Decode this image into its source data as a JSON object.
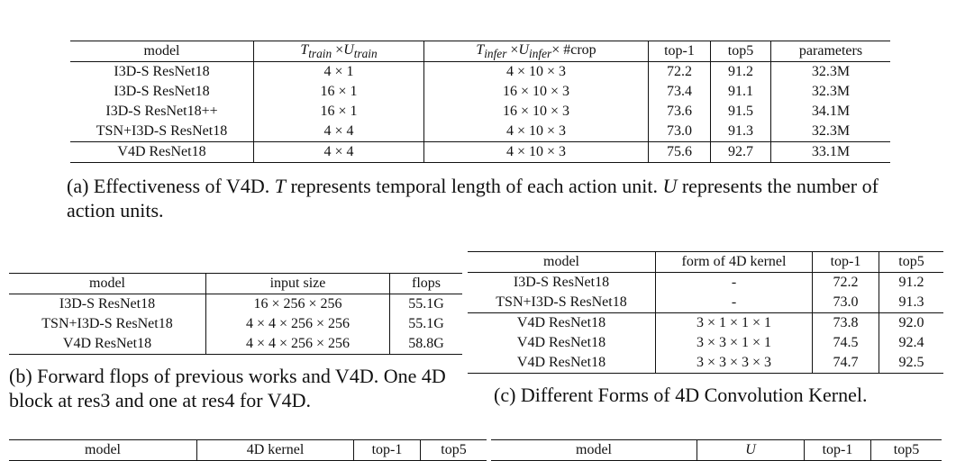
{
  "table_a": {
    "headers": [
      "model",
      "T_train ×U_train",
      "T_infer ×U_infer× #crop",
      "top-1",
      "top5",
      "parameters"
    ],
    "rows": [
      [
        "I3D-S ResNet18",
        "4 × 1",
        "4 × 10 × 3",
        "72.2",
        "91.2",
        "32.3M"
      ],
      [
        "I3D-S ResNet18",
        "16 × 1",
        "16 × 10 × 3",
        "73.4",
        "91.1",
        "32.3M"
      ],
      [
        "I3D-S ResNet18++",
        "16 × 1",
        "16 × 10 × 3",
        "73.6",
        "91.5",
        "34.1M"
      ],
      [
        "TSN+I3D-S ResNet18",
        "4 × 4",
        "4 × 10 × 3",
        "73.0",
        "91.3",
        "32.3M"
      ],
      [
        "V4D ResNet18",
        "4 × 4",
        "4 × 10 × 3",
        "75.6",
        "92.7",
        "33.1M"
      ]
    ],
    "caption_pre": "(a) Effectiveness of V4D. ",
    "caption_t": "T",
    "caption_mid": " represents temporal length of each action unit. ",
    "caption_u": "U",
    "caption_post": " represents the number of action units."
  },
  "table_b": {
    "headers": [
      "model",
      "input size",
      "flops"
    ],
    "rows": [
      [
        "I3D-S ResNet18",
        "16 × 256 × 256",
        "55.1G"
      ],
      [
        "TSN+I3D-S ResNet18",
        "4 × 4 × 256 × 256",
        "55.1G"
      ],
      [
        "V4D ResNet18",
        "4 × 4 × 256 × 256",
        "58.8G"
      ]
    ],
    "caption": "(b) Forward flops of previous works and V4D. One 4D block at res3 and one at res4 for V4D."
  },
  "table_c": {
    "headers": [
      "model",
      "form of 4D kernel",
      "top-1",
      "top5"
    ],
    "rows": [
      [
        "I3D-S ResNet18",
        "-",
        "72.2",
        "91.2"
      ],
      [
        "TSN+I3D-S ResNet18",
        "-",
        "73.0",
        "91.3"
      ],
      [
        "V4D ResNet18",
        "3 × 1 × 1 × 1",
        "73.8",
        "92.0"
      ],
      [
        "V4D ResNet18",
        "3 × 3 × 1 × 1",
        "74.5",
        "92.4"
      ],
      [
        "V4D ResNet18",
        "3 × 3 × 3 × 3",
        "74.7",
        "92.5"
      ]
    ],
    "caption": "(c) Different Forms of 4D Convolution Kernel."
  },
  "table_d": {
    "headers": [
      "model",
      "4D kernel",
      "top-1",
      "top5"
    ]
  },
  "table_e": {
    "headers": [
      "model",
      "U",
      "top-1",
      "top5"
    ]
  }
}
